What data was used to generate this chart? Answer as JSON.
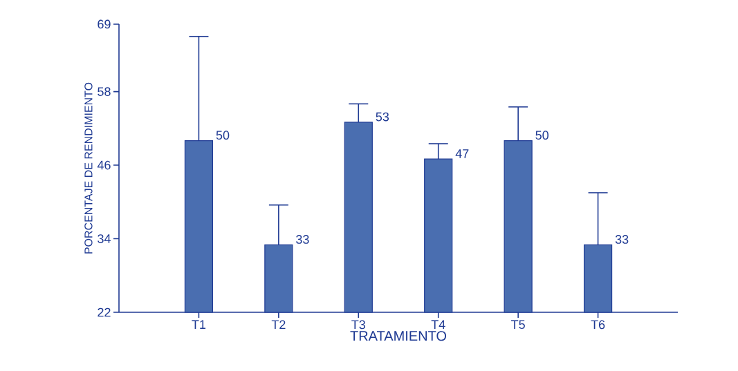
{
  "chart_data": {
    "type": "bar",
    "xlabel": "TRATAMIENTO",
    "ylabel": "PORCENTAJE DE RENDIMIENTO",
    "categories": [
      "T1",
      "T2",
      "T3",
      "T4",
      "T5",
      "T6"
    ],
    "values": [
      50,
      33,
      53,
      47,
      50,
      33
    ],
    "errors": [
      [
        50,
        67
      ],
      [
        33,
        39.5
      ],
      [
        53,
        56
      ],
      [
        47,
        49.5
      ],
      [
        50,
        55.5
      ],
      [
        33,
        41.5
      ]
    ],
    "color": "#4a6eb0",
    "data_labels": true,
    "ylim": [
      22,
      69
    ],
    "yticks": [
      22,
      34,
      46,
      58,
      69
    ],
    "grid": false
  }
}
